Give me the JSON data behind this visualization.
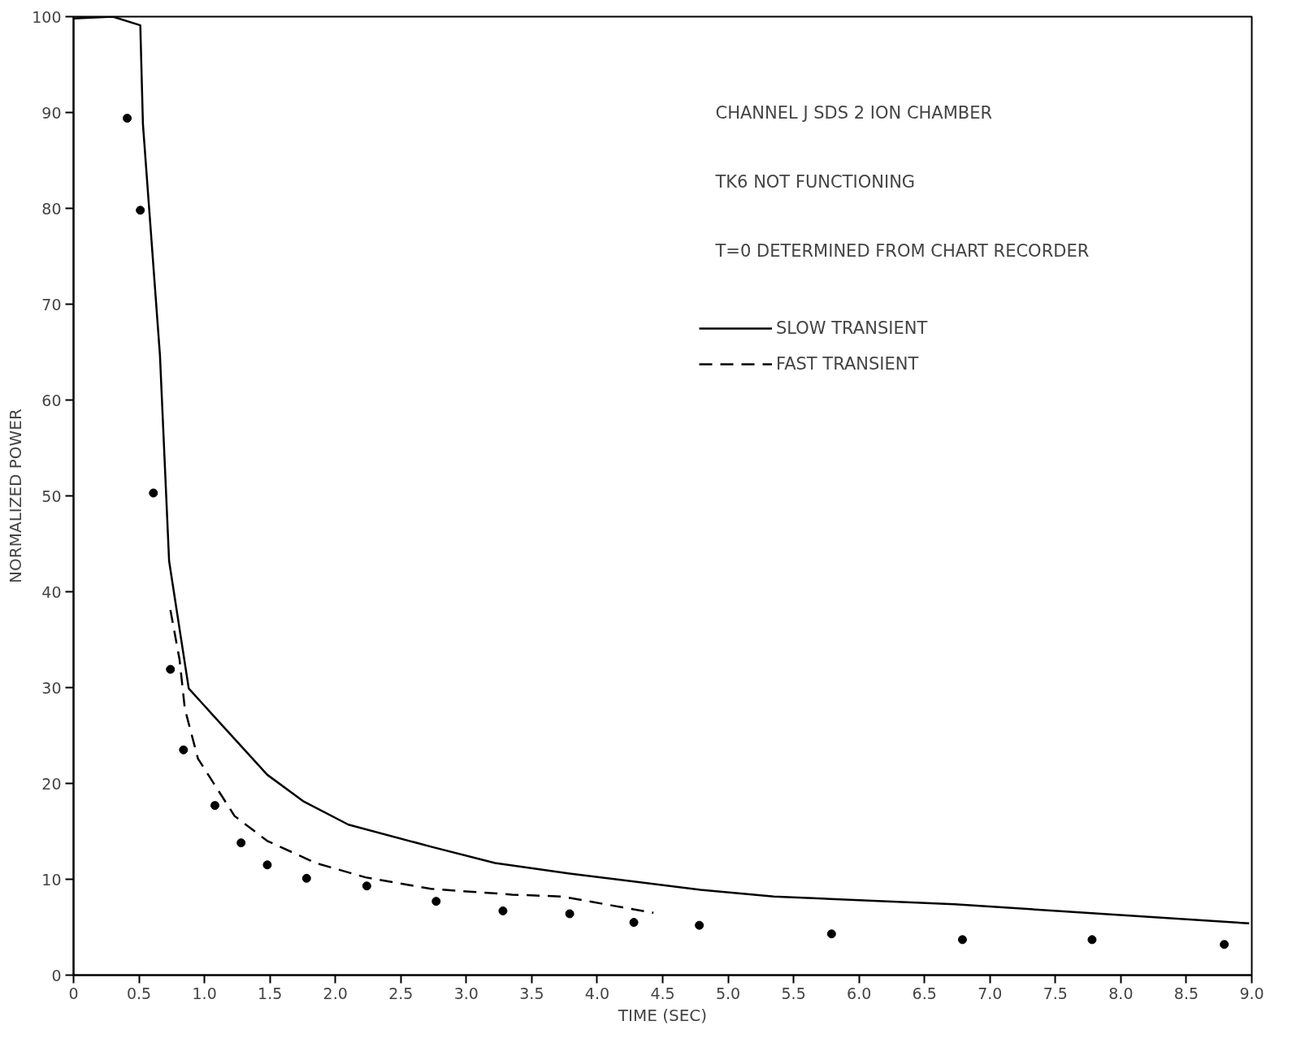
{
  "chart_data": {
    "type": "line",
    "xlabel": "TIME (SEC)",
    "ylabel": "NORMALIZED POWER",
    "annotations": [
      "CHANNEL J SDS 2 ION CHAMBER",
      "TK6 NOT FUNCTIONING",
      "T=0 DETERMINED FROM CHART RECORDER"
    ],
    "xlim": [
      0,
      9
    ],
    "ylim": [
      0,
      100
    ],
    "xticks": [
      0,
      0.5,
      {
        "value": 1,
        "label": "1.0"
      },
      1.5,
      {
        "value": 2,
        "label": "2.0"
      },
      2.5,
      {
        "value": 3,
        "label": "3.0"
      },
      3.5,
      {
        "value": 4,
        "label": "4.0"
      },
      4.5,
      {
        "value": 5,
        "label": "5.0"
      },
      5.5,
      {
        "value": 6,
        "label": "6.0"
      },
      6.5,
      {
        "value": 7,
        "label": "7.0"
      },
      7.5,
      {
        "value": 8,
        "label": "8.0"
      },
      8.5,
      {
        "value": 9,
        "label": "9.0"
      }
    ],
    "yticks": [
      0,
      10,
      20,
      30,
      40,
      50,
      60,
      70,
      80,
      90,
      100
    ],
    "grid": false,
    "legend": "top right",
    "series": [
      {
        "name": "SLOW TRANSIENT",
        "line_style": "solid",
        "color": "#000000",
        "x": [
          0,
          0.3,
          0.51,
          0.53,
          0.66,
          0.73,
          0.88,
          1.48,
          1.76,
          2.1,
          2.73,
          3.22,
          3.79,
          4.79,
          5.35,
          6.73,
          7.73,
          8.98
        ],
        "values": [
          99.8,
          100,
          99.1,
          88.8,
          64.7,
          43.2,
          29.9,
          20.9,
          18.1,
          15.7,
          13.4,
          11.7,
          10.6,
          8.9,
          8.2,
          7.4,
          6.5,
          5.4
        ]
      },
      {
        "name": "FAST TRANSIENT",
        "line_style": "dashed",
        "color": "#000000",
        "x": [
          0.74,
          0.81,
          0.85,
          0.95,
          1.23,
          1.48,
          1.85,
          2.23,
          2.73,
          3.35,
          3.73,
          4.43
        ],
        "values": [
          38.1,
          32.9,
          27.8,
          22.6,
          16.6,
          14.0,
          11.7,
          10.2,
          9.0,
          8.4,
          8.2,
          6.5
        ]
      },
      {
        "type": "scatter",
        "marker": "circle",
        "color": "#000000",
        "x": [
          0.41,
          0.51,
          0.61,
          0.74,
          0.84,
          1.08,
          1.28,
          1.48,
          1.78,
          2.24,
          2.77,
          3.28,
          3.79,
          4.28,
          4.78,
          5.79,
          6.79,
          7.78,
          8.79
        ],
        "values": [
          89.4,
          79.8,
          50.3,
          31.9,
          23.5,
          17.7,
          13.8,
          11.5,
          10.1,
          9.3,
          7.7,
          6.7,
          6.4,
          5.5,
          5.2,
          4.3,
          3.7,
          3.7,
          3.2
        ]
      }
    ]
  }
}
